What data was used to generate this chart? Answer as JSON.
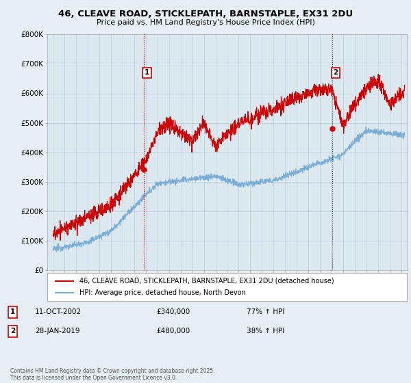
{
  "title_line1": "46, CLEAVE ROAD, STICKLEPATH, BARNSTAPLE, EX31 2DU",
  "title_line2": "Price paid vs. HM Land Registry's House Price Index (HPI)",
  "background_color": "#e8eef5",
  "plot_background": "#dce8f0",
  "red_line_color": "#cc0000",
  "blue_line_color": "#7aaed6",
  "ylim": [
    0,
    800000
  ],
  "yticks": [
    0,
    100000,
    200000,
    300000,
    400000,
    500000,
    600000,
    700000,
    800000
  ],
  "ytick_labels": [
    "£0",
    "£100K",
    "£200K",
    "£300K",
    "£400K",
    "£500K",
    "£600K",
    "£700K",
    "£800K"
  ],
  "event1_x": 2002.8,
  "event1_y_red": 340000,
  "event1_label": "1",
  "event1_date": "11-OCT-2002",
  "event1_price": "£340,000",
  "event1_hpi": "77% ↑ HPI",
  "event2_x": 2019.07,
  "event2_y_red": 480000,
  "event2_label": "2",
  "event2_date": "28-JAN-2019",
  "event2_price": "£480,000",
  "event2_hpi": "38% ↑ HPI",
  "legend_label_red": "46, CLEAVE ROAD, STICKLEPATH, BARNSTAPLE, EX31 2DU (detached house)",
  "legend_label_blue": "HPI: Average price, detached house, North Devon",
  "footer_text": "Contains HM Land Registry data © Crown copyright and database right 2025.\nThis data is licensed under the Open Government Licence v3.0.",
  "xmin": 1994.5,
  "xmax": 2025.5
}
